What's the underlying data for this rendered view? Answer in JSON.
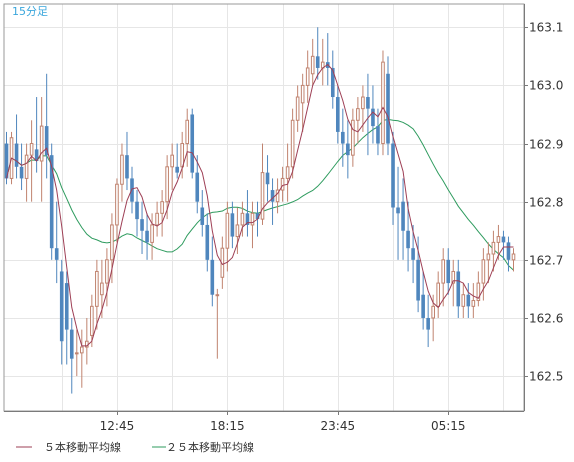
{
  "timeframe_label": "15分足",
  "chart_data": {
    "type": "candlestick",
    "title": "",
    "ylim": [
      162.44,
      163.14
    ],
    "y_ticks": [
      "163.1",
      "163.0",
      "162.9",
      "162.8",
      "162.7",
      "162.6",
      "162.5"
    ],
    "x_ticks": [
      "12:45",
      "18:15",
      "23:45",
      "05:15"
    ],
    "grid": true,
    "legend_position": "bottom-left",
    "up_color": "#c0836f",
    "down_color": "#4f86bd",
    "series": [
      {
        "name": "５本移動平均線",
        "color": "#9e3f55"
      },
      {
        "name": "２５本移動平均線",
        "color": "#2e9b5e"
      }
    ],
    "candles": [
      [
        162.9,
        162.92,
        162.83,
        162.84
      ],
      [
        162.84,
        162.92,
        162.83,
        162.91
      ],
      [
        162.9,
        162.95,
        162.84,
        162.86
      ],
      [
        162.86,
        162.9,
        162.82,
        162.84
      ],
      [
        162.84,
        162.9,
        162.8,
        162.88
      ],
      [
        162.88,
        162.94,
        162.8,
        162.9
      ],
      [
        162.89,
        162.98,
        162.85,
        162.87
      ],
      [
        162.87,
        162.98,
        162.8,
        162.93
      ],
      [
        162.93,
        163.02,
        162.84,
        162.88
      ],
      [
        162.88,
        162.9,
        162.7,
        162.72
      ],
      [
        162.72,
        162.8,
        162.66,
        162.7
      ],
      [
        162.68,
        162.7,
        162.52,
        162.56
      ],
      [
        162.66,
        162.68,
        162.52,
        162.58
      ],
      [
        162.58,
        162.6,
        162.47,
        162.53
      ],
      [
        162.54,
        162.58,
        162.5,
        162.54
      ],
      [
        162.54,
        162.58,
        162.48,
        162.55
      ],
      [
        162.55,
        162.6,
        162.52,
        162.56
      ],
      [
        162.57,
        162.64,
        162.55,
        162.62
      ],
      [
        162.62,
        162.7,
        162.58,
        162.68
      ],
      [
        162.64,
        162.7,
        162.6,
        162.66
      ],
      [
        162.66,
        162.72,
        162.62,
        162.7
      ],
      [
        162.7,
        162.78,
        162.66,
        162.76
      ],
      [
        162.76,
        162.84,
        162.73,
        162.83
      ],
      [
        162.83,
        162.9,
        162.8,
        162.88
      ],
      [
        162.88,
        162.92,
        162.82,
        162.84
      ],
      [
        162.84,
        162.86,
        162.78,
        162.8
      ],
      [
        162.8,
        162.82,
        162.74,
        162.77
      ],
      [
        162.77,
        162.8,
        162.71,
        162.75
      ],
      [
        162.75,
        162.78,
        162.7,
        162.73
      ],
      [
        162.73,
        162.78,
        162.7,
        162.76
      ],
      [
        162.76,
        162.8,
        162.74,
        162.78
      ],
      [
        162.78,
        162.82,
        162.74,
        162.8
      ],
      [
        162.8,
        162.88,
        162.77,
        162.86
      ],
      [
        162.86,
        162.9,
        162.82,
        162.88
      ],
      [
        162.86,
        162.9,
        162.84,
        162.85
      ],
      [
        162.86,
        162.92,
        162.84,
        162.9
      ],
      [
        162.9,
        162.96,
        162.86,
        162.94
      ],
      [
        162.95,
        162.96,
        162.84,
        162.85
      ],
      [
        162.85,
        162.88,
        162.78,
        162.8
      ],
      [
        162.79,
        162.82,
        162.74,
        162.76
      ],
      [
        162.76,
        162.78,
        162.68,
        162.7
      ],
      [
        162.7,
        162.74,
        162.62,
        162.64
      ],
      [
        162.64,
        162.65,
        162.53,
        162.64
      ],
      [
        162.67,
        162.74,
        162.65,
        162.72
      ],
      [
        162.72,
        162.8,
        162.68,
        162.78
      ],
      [
        162.78,
        162.8,
        162.72,
        162.74
      ],
      [
        162.74,
        162.79,
        162.71,
        162.76
      ],
      [
        162.76,
        162.8,
        162.74,
        162.78
      ],
      [
        162.78,
        162.82,
        162.74,
        162.76
      ],
      [
        162.76,
        162.8,
        162.72,
        162.78
      ],
      [
        162.78,
        162.8,
        162.74,
        162.77
      ],
      [
        162.77,
        162.9,
        162.76,
        162.85
      ],
      [
        162.85,
        162.88,
        162.8,
        162.83
      ],
      [
        162.82,
        162.84,
        162.76,
        162.8
      ],
      [
        162.8,
        162.84,
        162.78,
        162.82
      ],
      [
        162.82,
        162.86,
        162.8,
        162.84
      ],
      [
        162.84,
        162.9,
        162.8,
        162.86
      ],
      [
        162.86,
        162.96,
        162.84,
        162.94
      ],
      [
        162.94,
        163.0,
        162.92,
        162.98
      ],
      [
        162.97,
        163.02,
        162.92,
        163.0
      ],
      [
        163.0,
        163.06,
        162.97,
        163.03
      ],
      [
        163.02,
        163.08,
        163.0,
        163.05
      ],
      [
        163.05,
        163.1,
        163.01,
        163.03
      ],
      [
        163.03,
        163.08,
        163.0,
        163.04
      ],
      [
        163.04,
        163.09,
        163.0,
        163.03
      ],
      [
        163.03,
        163.06,
        162.96,
        162.98
      ],
      [
        162.98,
        163.0,
        162.9,
        162.92
      ],
      [
        162.92,
        162.96,
        162.86,
        162.9
      ],
      [
        162.9,
        162.94,
        162.84,
        162.88
      ],
      [
        162.88,
        162.96,
        162.86,
        162.94
      ],
      [
        162.94,
        162.98,
        162.9,
        162.96
      ],
      [
        162.96,
        163.0,
        162.92,
        162.98
      ],
      [
        162.98,
        163.02,
        162.88,
        162.96
      ],
      [
        162.96,
        163.0,
        162.9,
        162.93
      ],
      [
        162.93,
        162.96,
        162.88,
        162.9
      ],
      [
        162.9,
        163.06,
        162.88,
        163.04
      ],
      [
        163.02,
        163.05,
        162.88,
        162.9
      ],
      [
        162.9,
        162.92,
        162.76,
        162.79
      ],
      [
        162.79,
        162.86,
        162.7,
        162.78
      ],
      [
        162.8,
        162.84,
        162.7,
        162.75
      ],
      [
        162.75,
        162.8,
        162.68,
        162.72
      ],
      [
        162.72,
        162.76,
        162.66,
        162.7
      ],
      [
        162.7,
        162.74,
        162.61,
        162.63
      ],
      [
        162.64,
        162.68,
        162.58,
        162.6
      ],
      [
        162.6,
        162.64,
        162.55,
        162.58
      ],
      [
        162.6,
        162.64,
        162.56,
        162.62
      ],
      [
        162.62,
        162.68,
        162.6,
        162.66
      ],
      [
        162.66,
        162.72,
        162.62,
        162.7
      ],
      [
        162.7,
        162.72,
        162.64,
        162.66
      ],
      [
        162.66,
        162.7,
        162.62,
        162.68
      ],
      [
        162.68,
        162.7,
        162.6,
        162.62
      ],
      [
        162.62,
        162.66,
        162.6,
        162.64
      ],
      [
        162.64,
        162.66,
        162.6,
        162.62
      ],
      [
        162.62,
        162.66,
        162.6,
        162.63
      ],
      [
        162.63,
        162.68,
        162.62,
        162.66
      ],
      [
        162.66,
        162.72,
        162.63,
        162.7
      ],
      [
        162.7,
        162.73,
        162.66,
        162.71
      ],
      [
        162.71,
        162.75,
        162.68,
        162.73
      ],
      [
        162.73,
        162.76,
        162.7,
        162.74
      ],
      [
        162.74,
        162.75,
        162.7,
        162.73
      ],
      [
        162.73,
        162.74,
        162.68,
        162.7
      ],
      [
        162.7,
        162.72,
        162.68,
        162.71
      ]
    ]
  }
}
